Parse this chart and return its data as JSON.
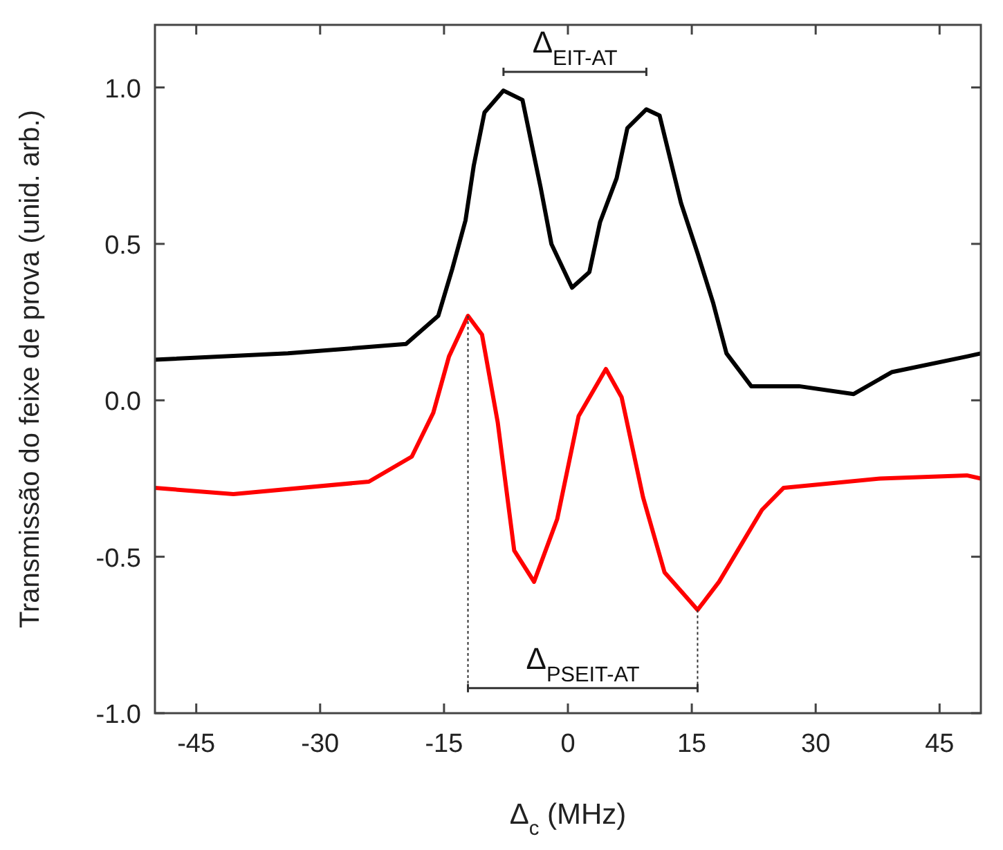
{
  "chart_data": {
    "type": "line",
    "xlabel": "Δ$_{c}$ (MHz)",
    "ylabel": "Transmissão do feixe de prova (unid. arb.)",
    "xlim": [
      -50,
      50
    ],
    "ylim": [
      -1,
      1.2
    ],
    "xticks": [
      -45,
      -30,
      -15,
      0,
      15,
      30,
      45
    ],
    "yticks": [
      {
        "value": -1,
        "label": "-1.0"
      },
      {
        "value": -0.5,
        "label": "-0.5"
      },
      {
        "value": 0,
        "label": "0.0"
      },
      {
        "value": 0.5,
        "label": "0.5"
      },
      {
        "value": 1,
        "label": "1.0"
      }
    ],
    "grid": false,
    "line_style": "solid",
    "series": [
      {
        "color": "#000000",
        "x": [
          -50,
          -33.9,
          -19.6,
          -15.7,
          -14,
          -12.4,
          -11.4,
          -10.1,
          -7.8,
          -5.5,
          -3.3,
          -2,
          0.5,
          2.6,
          3.9,
          5.9,
          7.2,
          9.5,
          11.1,
          13.7,
          15.7,
          17.6,
          19.2,
          22.2,
          28,
          34.6,
          39.2,
          48.3,
          50
        ],
        "values": [
          0.13,
          0.15,
          0.18,
          0.27,
          0.42,
          0.575,
          0.75,
          0.92,
          0.99,
          0.96,
          0.68,
          0.5,
          0.36,
          0.41,
          0.57,
          0.71,
          0.87,
          0.93,
          0.91,
          0.63,
          0.47,
          0.31,
          0.15,
          0.045,
          0.045,
          0.02,
          0.09,
          0.14,
          0.15
        ]
      },
      {
        "color": "#ff0000",
        "x": [
          -50,
          -40.5,
          -24.1,
          -18.9,
          -16.3,
          -14.4,
          -12.1,
          -10.4,
          -8.5,
          -6.5,
          -4.1,
          -1.3,
          1.3,
          4.6,
          6.5,
          9.1,
          11.7,
          15.7,
          18.3,
          23.5,
          26.1,
          37.8,
          48.3,
          50
        ],
        "values": [
          -0.28,
          -0.3,
          -0.26,
          -0.18,
          -0.04,
          0.14,
          0.27,
          0.21,
          -0.07,
          -0.48,
          -0.58,
          -0.38,
          -0.05,
          0.1,
          0.01,
          -0.31,
          -0.55,
          -0.67,
          -0.58,
          -0.35,
          -0.28,
          -0.25,
          -0.24,
          -0.25
        ]
      }
    ],
    "annotations": [
      "Δ$_{EIT-AT}$",
      "Δ$_{PSEIT-AT}$"
    ]
  }
}
